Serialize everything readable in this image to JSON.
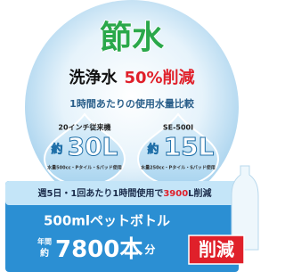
{
  "header": {
    "title": "節水",
    "headline": {
      "label": "洗浄水",
      "highlight": "50%削減"
    },
    "subtitle": "1時間あたりの使用水量比較"
  },
  "comparisons": [
    {
      "model": "20インチ従来機",
      "prefix": "約",
      "amount": "30L",
      "note": "水量500cc・Pタイル・Sパッド使用"
    },
    {
      "model": "SE-500I",
      "prefix": "約",
      "amount": "15L",
      "note": "水量250cc・Pタイル・Sパッド使用"
    }
  ],
  "footer": {
    "line1": {
      "before": "週5日・1回あたり1時間使用で",
      "highlight": "3900",
      "after": "L削減"
    },
    "line2": "500mlペットボトル",
    "line3": {
      "prefix_top": "年間",
      "prefix_bottom": "約",
      "amount": "7800本",
      "suffix": "分"
    },
    "badge": "削減"
  }
}
